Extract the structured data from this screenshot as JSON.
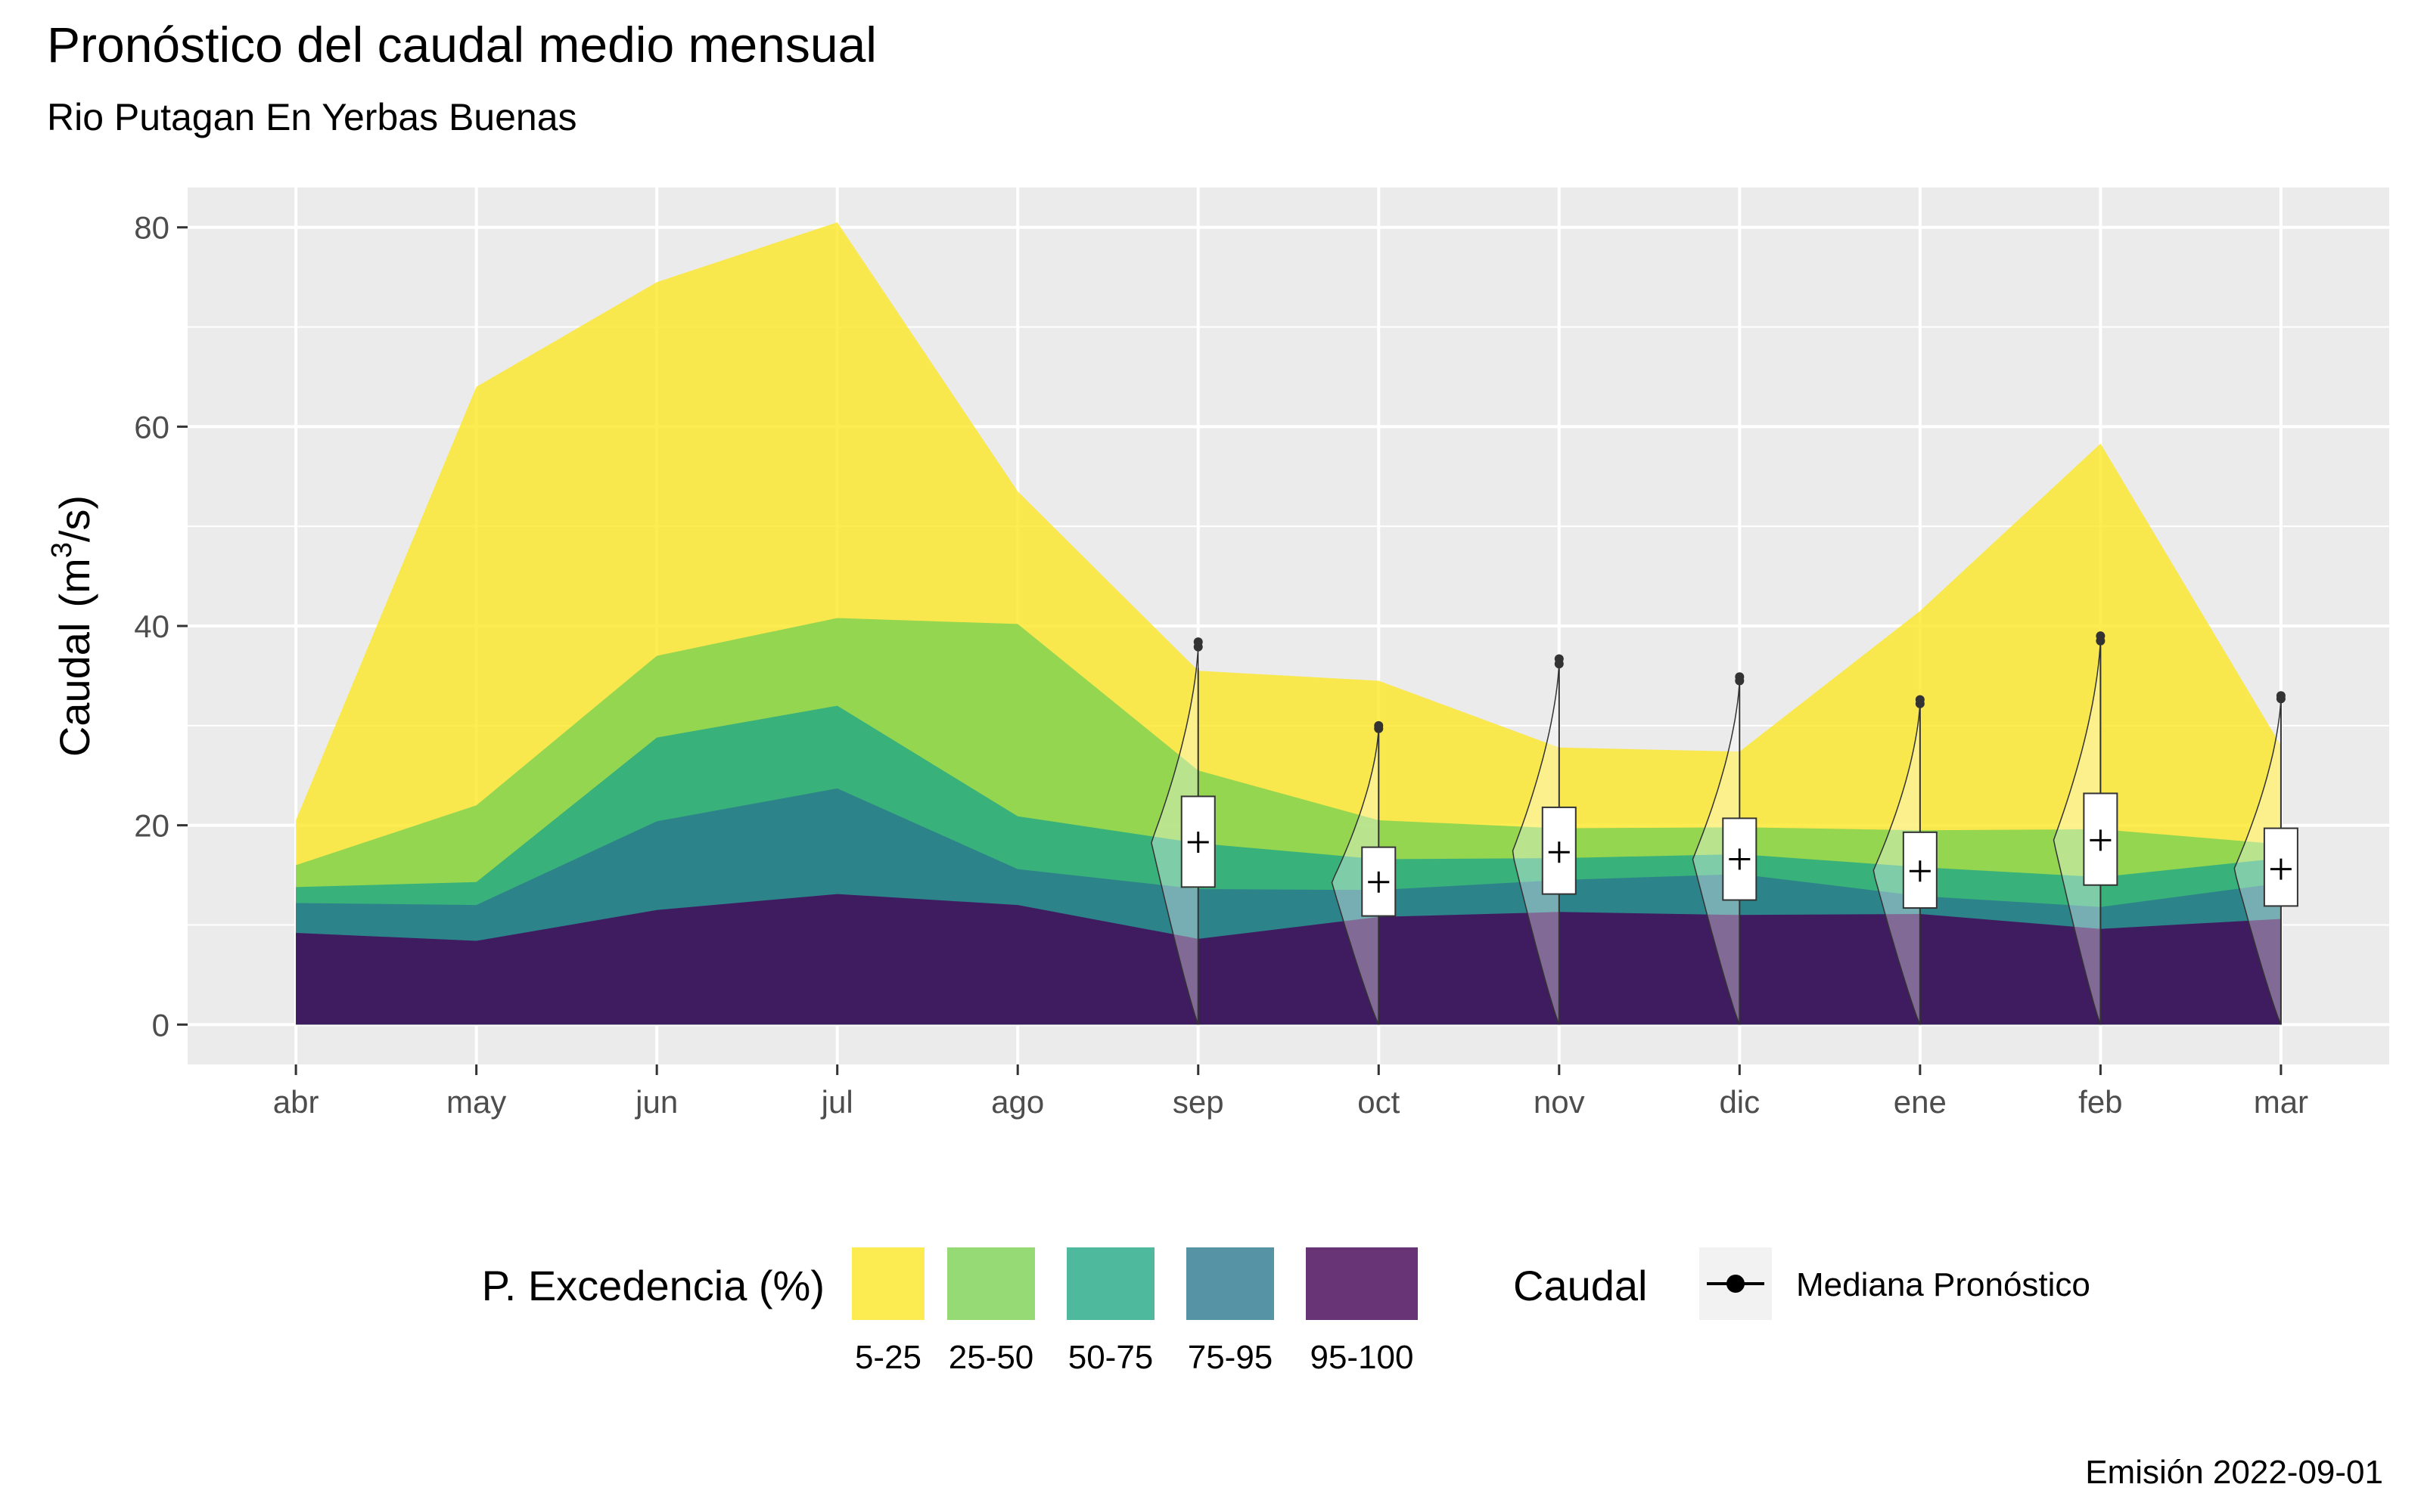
{
  "chart_data": {
    "type": "area",
    "title": "Pronóstico del caudal medio mensual",
    "subtitle": "Rio Putagan En Yerbas Buenas",
    "ylabel_main": "Caudal",
    "ylabel_unit": "(m",
    "ylabel_sup": "3",
    "ylabel_unit_end": "/s)",
    "ylim": [
      -4,
      84
    ],
    "y_ticks": [
      0,
      20,
      40,
      60,
      80
    ],
    "categories": [
      "abr",
      "may",
      "jun",
      "jul",
      "ago",
      "sep",
      "oct",
      "nov",
      "dic",
      "ene",
      "feb",
      "mar"
    ],
    "grid": true,
    "bands": [
      {
        "name": "5-25",
        "color": "#FDE725",
        "upper": [
          20.5,
          64,
          74.5,
          80.5,
          53.5,
          35.5,
          34.5,
          27.8,
          27.4,
          41.5,
          58.3,
          28
        ]
      },
      {
        "name": "25-50",
        "color": "#7AD151",
        "upper": [
          16,
          22,
          37,
          40.8,
          40.2,
          25.5,
          20.5,
          19.7,
          19.8,
          19.5,
          19.6,
          18.1
        ]
      },
      {
        "name": "50-75",
        "color": "#22A884",
        "upper": [
          13.8,
          14.3,
          28.8,
          32,
          20.9,
          18.2,
          16.6,
          16.7,
          17.1,
          15.8,
          14.8,
          16.7
        ]
      },
      {
        "name": "75-95",
        "color": "#2A788E",
        "upper": [
          12.2,
          12,
          20.4,
          23.7,
          15.6,
          13.6,
          13.5,
          14.5,
          15.1,
          12.9,
          11.8,
          14.2
        ]
      },
      {
        "name": "95-100",
        "color": "#440154",
        "upper": [
          9.2,
          8.4,
          11.5,
          13.1,
          12,
          8.6,
          10.8,
          11.3,
          11,
          11.1,
          9.6,
          10.6
        ]
      }
    ],
    "forecast": [
      {
        "month": "sep",
        "whisker_low": 0,
        "q1": 13.8,
        "median": 18.3,
        "q3": 22.9,
        "whisker_high": 35.8,
        "outliers": [
          37.9,
          38.4
        ]
      },
      {
        "month": "oct",
        "whisker_low": 0,
        "q1": 10.9,
        "median": 14.3,
        "q3": 17.8,
        "whisker_high": 29.2,
        "outliers": [
          29.7,
          30
        ]
      },
      {
        "month": "nov",
        "whisker_low": 0,
        "q1": 13.1,
        "median": 17.3,
        "q3": 21.8,
        "whisker_high": 35.8,
        "outliers": [
          36.2,
          36.7
        ]
      },
      {
        "month": "dic",
        "whisker_low": 0,
        "q1": 12.5,
        "median": 16.6,
        "q3": 20.7,
        "whisker_high": 34,
        "outliers": [
          34.5,
          34.9
        ]
      },
      {
        "month": "ene",
        "whisker_low": 0,
        "q1": 11.7,
        "median": 15.4,
        "q3": 19.3,
        "whisker_high": 31.8,
        "outliers": [
          32.2,
          32.6
        ]
      },
      {
        "month": "feb",
        "whisker_low": 0,
        "q1": 14,
        "median": 18.5,
        "q3": 23.2,
        "whisker_high": 38,
        "outliers": [
          38.5,
          39
        ]
      },
      {
        "month": "mar",
        "whisker_low": 0,
        "q1": 11.9,
        "median": 15.6,
        "q3": 19.7,
        "whisker_high": 32.4,
        "outliers": [
          32.7,
          33
        ]
      }
    ],
    "legend": {
      "position": "bottom",
      "fill_title": "P. Excedencia (%)",
      "line_title": "Caudal",
      "line_label": "Mediana Pronóstico",
      "fill_colors": [
        "#FDE725",
        "#7AD151",
        "#22A884",
        "#2A788E",
        "#440154"
      ],
      "fill_labels": [
        "5-25",
        "25-50",
        "50-75",
        "75-95",
        "95-100"
      ]
    },
    "caption": "Emisión 2022-09-01"
  }
}
